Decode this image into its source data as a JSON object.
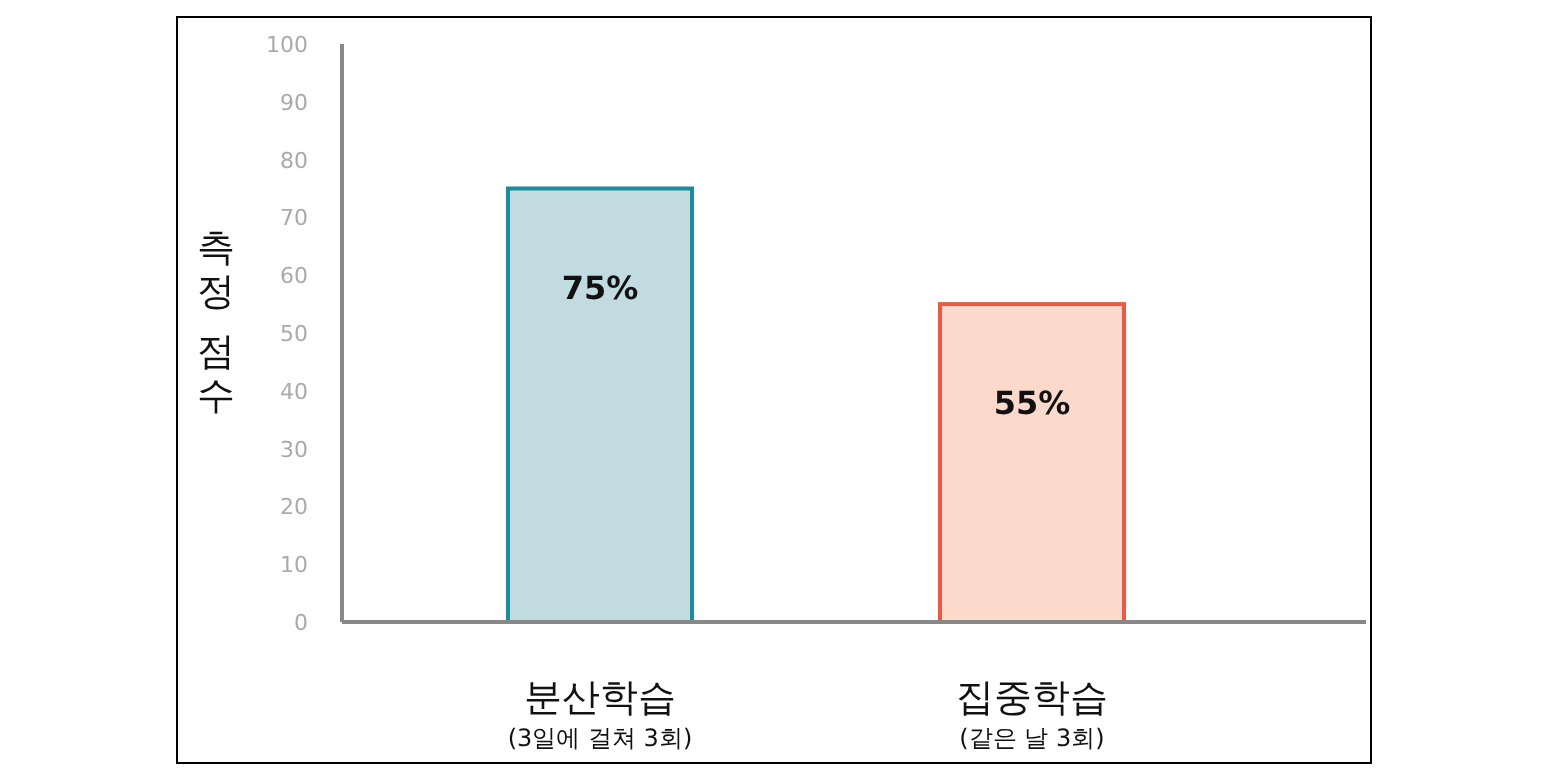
{
  "chart_data": {
    "type": "bar",
    "categories": [
      "분산학습\n(3일에 걸쳐 3회)",
      "집중학습\n(같은 날 3회)"
    ],
    "values": [
      75,
      55
    ],
    "value_labels": [
      "75%",
      "55%"
    ],
    "colors": [
      "#c2dbe1",
      "#fbd9cb"
    ],
    "ylabel": "측정 점수",
    "ylim": [
      0,
      100
    ],
    "yticks": [
      0,
      10,
      20,
      30,
      40,
      50,
      60,
      70,
      80,
      90,
      100
    ],
    "grid": false
  }
}
